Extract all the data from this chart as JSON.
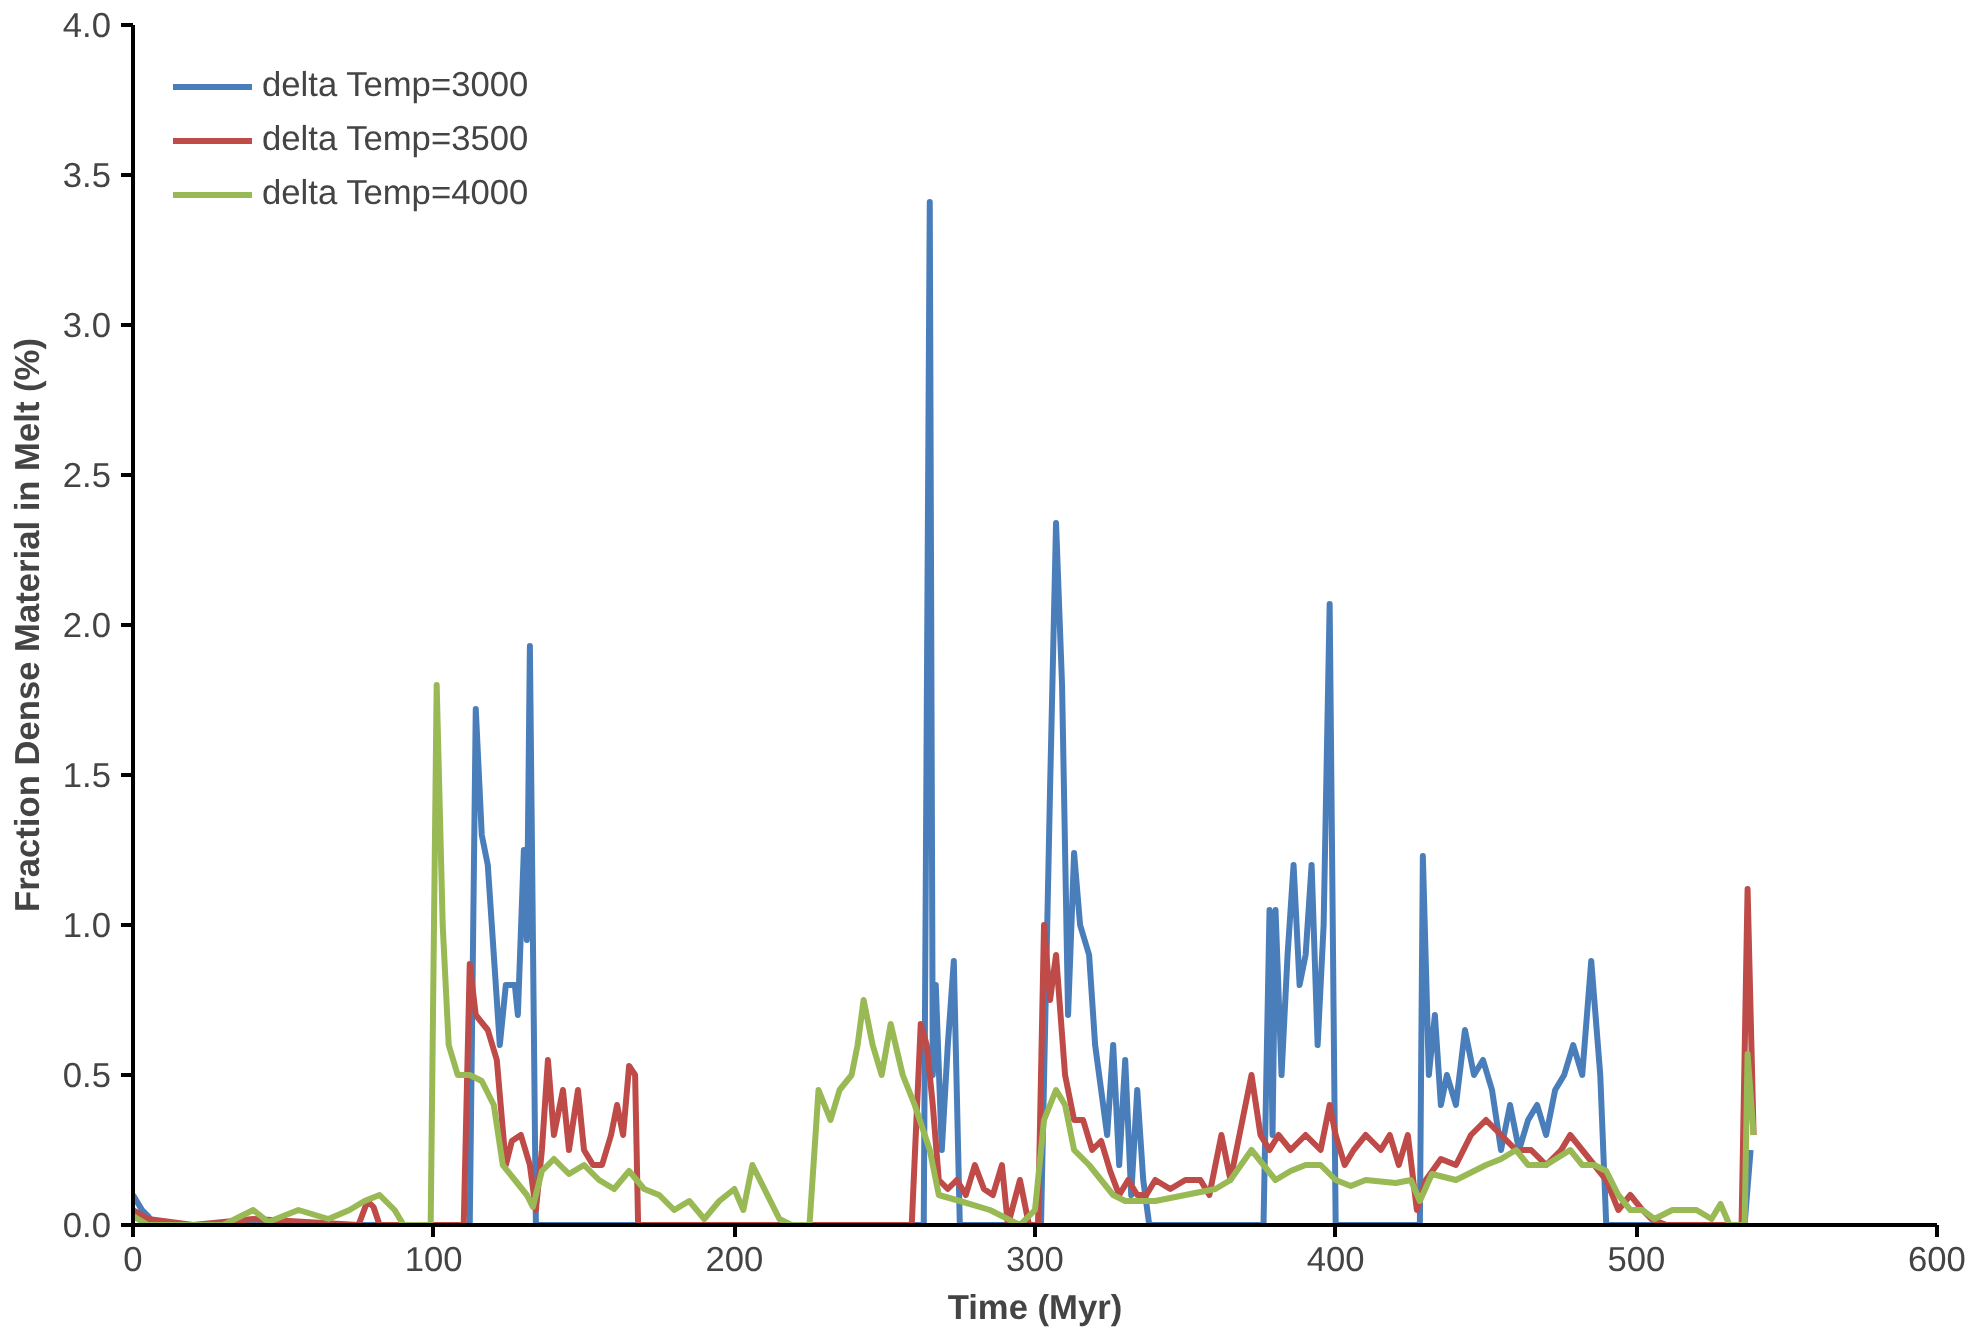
{
  "chart_data": {
    "type": "line",
    "xlabel": "Time (Myr)",
    "ylabel": "Fraction Dense Material in Melt (%)",
    "xlim": [
      0,
      600
    ],
    "xticks": [
      0,
      100,
      200,
      300,
      400,
      500,
      600
    ],
    "ylim": [
      0,
      4
    ],
    "yticks": [
      {
        "value": 0,
        "label": "0.0"
      },
      {
        "value": 0.5,
        "label": "0.5"
      },
      {
        "value": 1,
        "label": "1.0"
      },
      {
        "value": 1.5,
        "label": "1.5"
      },
      {
        "value": 2,
        "label": "2.0"
      },
      {
        "value": 2.5,
        "label": "2.5"
      },
      {
        "value": 3,
        "label": "3.0"
      },
      {
        "value": 3.5,
        "label": "3.5"
      },
      {
        "value": 4,
        "label": "4.0"
      }
    ],
    "grid": false,
    "legend": "top left",
    "marker": "none",
    "line_style": "solid",
    "series": [
      {
        "name": "delta Temp=3000",
        "color": "#4a7ebb",
        "x": [
          0,
          3,
          5,
          7,
          112,
          114,
          116,
          118,
          120,
          122,
          124,
          127,
          128,
          130,
          131,
          132,
          134,
          263,
          265,
          266,
          267,
          269,
          271,
          273,
          275,
          302,
          305,
          307,
          309,
          311,
          313,
          315,
          318,
          320,
          322,
          324,
          326,
          328,
          330,
          332,
          334,
          336,
          338,
          376,
          378,
          379,
          380,
          382,
          384,
          386,
          388,
          390,
          392,
          394,
          396,
          398,
          400,
          428,
          429,
          431,
          433,
          435,
          437,
          440,
          443,
          446,
          449,
          452,
          455,
          458,
          461,
          464,
          467,
          470,
          473,
          476,
          479,
          482,
          485,
          488,
          490,
          536,
          538
        ],
        "values": [
          0.1,
          0.05,
          0.03,
          0,
          0,
          1.72,
          1.3,
          1.2,
          0.9,
          0.6,
          0.8,
          0.8,
          0.7,
          1.25,
          0.95,
          1.93,
          0,
          0,
          3.41,
          0.5,
          0.8,
          0.25,
          0.6,
          0.88,
          0,
          0,
          1.45,
          2.34,
          1.8,
          0.7,
          1.24,
          1.0,
          0.9,
          0.6,
          0.45,
          0.3,
          0.6,
          0.2,
          0.55,
          0.1,
          0.45,
          0.15,
          0,
          0,
          1.05,
          0.3,
          1.05,
          0.5,
          0.9,
          1.2,
          0.8,
          0.9,
          1.2,
          0.6,
          1.0,
          2.07,
          0,
          0,
          1.23,
          0.5,
          0.7,
          0.4,
          0.5,
          0.4,
          0.65,
          0.5,
          0.55,
          0.45,
          0.25,
          0.4,
          0.25,
          0.35,
          0.4,
          0.3,
          0.45,
          0.5,
          0.6,
          0.5,
          0.88,
          0.5,
          0,
          0,
          0.25
        ]
      },
      {
        "name": "delta Temp=3500",
        "color": "#be4b48",
        "x": [
          0,
          5,
          20,
          40,
          75,
          78,
          80,
          82,
          110,
          112,
          114,
          118,
          121,
          124,
          126,
          129,
          132,
          134,
          136,
          138,
          140,
          143,
          145,
          148,
          150,
          153,
          156,
          159,
          161,
          163,
          165,
          167,
          168,
          259,
          262,
          264,
          266,
          268,
          271,
          274,
          277,
          280,
          283,
          286,
          289,
          291,
          295,
          298,
          301,
          303,
          305,
          307,
          310,
          313,
          316,
          319,
          322,
          325,
          328,
          331,
          334,
          337,
          340,
          345,
          350,
          355,
          358,
          362,
          365,
          368,
          372,
          375,
          378,
          381,
          385,
          390,
          395,
          398,
          400,
          403,
          406,
          410,
          415,
          418,
          421,
          424,
          427,
          430,
          435,
          440,
          445,
          450,
          455,
          460,
          465,
          470,
          475,
          478,
          482,
          486,
          490,
          494,
          498,
          502,
          505,
          510,
          535,
          537,
          539
        ],
        "values": [
          0.05,
          0.02,
          0,
          0.02,
          0,
          0.08,
          0.06,
          0,
          0,
          0.87,
          0.7,
          0.65,
          0.55,
          0.2,
          0.28,
          0.3,
          0.2,
          0.05,
          0.25,
          0.55,
          0.3,
          0.45,
          0.25,
          0.45,
          0.25,
          0.2,
          0.2,
          0.3,
          0.4,
          0.3,
          0.53,
          0.5,
          0,
          0,
          0.67,
          0.6,
          0.4,
          0.15,
          0.12,
          0.15,
          0.1,
          0.2,
          0.12,
          0.1,
          0.2,
          0,
          0.15,
          0,
          0,
          1.0,
          0.75,
          0.9,
          0.5,
          0.35,
          0.35,
          0.25,
          0.28,
          0.18,
          0.1,
          0.15,
          0.1,
          0.1,
          0.15,
          0.12,
          0.15,
          0.15,
          0.1,
          0.3,
          0.15,
          0.3,
          0.5,
          0.3,
          0.25,
          0.3,
          0.25,
          0.3,
          0.25,
          0.4,
          0.3,
          0.2,
          0.25,
          0.3,
          0.25,
          0.3,
          0.2,
          0.3,
          0.05,
          0.15,
          0.22,
          0.2,
          0.3,
          0.35,
          0.3,
          0.25,
          0.25,
          0.2,
          0.25,
          0.3,
          0.25,
          0.2,
          0.15,
          0.05,
          0.1,
          0.05,
          0.02,
          0,
          0,
          1.12,
          0.3
        ]
      },
      {
        "name": "delta Temp=4000",
        "color": "#98b954",
        "x": [
          0,
          5,
          30,
          40,
          45,
          55,
          65,
          72,
          77,
          82,
          87,
          90,
          99,
          101,
          103,
          105,
          108,
          112,
          116,
          120,
          123,
          127,
          131,
          133,
          136,
          140,
          145,
          150,
          155,
          160,
          165,
          170,
          175,
          180,
          185,
          190,
          195,
          200,
          203,
          206,
          210,
          215,
          219,
          225,
          228,
          232,
          235,
          239,
          241,
          243,
          246,
          249,
          252,
          256,
          260,
          265,
          268,
          275,
          285,
          295,
          300,
          303,
          307,
          310,
          313,
          318,
          322,
          326,
          330,
          340,
          350,
          360,
          365,
          372,
          376,
          380,
          385,
          390,
          395,
          400,
          405,
          410,
          420,
          425,
          428,
          432,
          440,
          450,
          455,
          460,
          464,
          470,
          478,
          482,
          486,
          490,
          494,
          498,
          502,
          506,
          512,
          520,
          525,
          528,
          531,
          536,
          537,
          539
        ],
        "values": [
          0.03,
          0,
          0,
          0.05,
          0.01,
          0.05,
          0.02,
          0.05,
          0.08,
          0.1,
          0.05,
          0,
          0,
          1.8,
          1.0,
          0.6,
          0.5,
          0.5,
          0.48,
          0.4,
          0.2,
          0.15,
          0.1,
          0.06,
          0.18,
          0.22,
          0.17,
          0.2,
          0.15,
          0.12,
          0.18,
          0.12,
          0.1,
          0.05,
          0.08,
          0.02,
          0.08,
          0.12,
          0.05,
          0.2,
          0.12,
          0.02,
          0,
          0,
          0.45,
          0.35,
          0.45,
          0.5,
          0.6,
          0.75,
          0.6,
          0.5,
          0.67,
          0.5,
          0.4,
          0.25,
          0.1,
          0.08,
          0.05,
          0,
          0.05,
          0.35,
          0.45,
          0.4,
          0.25,
          0.2,
          0.15,
          0.1,
          0.08,
          0.08,
          0.1,
          0.12,
          0.15,
          0.25,
          0.2,
          0.15,
          0.18,
          0.2,
          0.2,
          0.15,
          0.13,
          0.15,
          0.14,
          0.15,
          0.08,
          0.17,
          0.15,
          0.2,
          0.22,
          0.25,
          0.2,
          0.2,
          0.25,
          0.2,
          0.2,
          0.18,
          0.1,
          0.05,
          0.05,
          0.02,
          0.05,
          0.05,
          0.02,
          0.07,
          0,
          0,
          0.57,
          0.3
        ]
      }
    ]
  }
}
